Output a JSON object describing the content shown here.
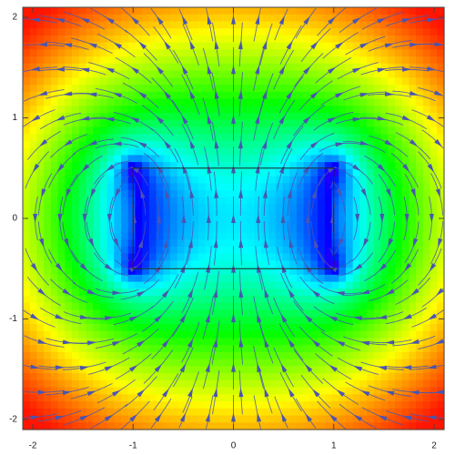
{
  "chart_data": {
    "type": "stream-density",
    "xlim": [
      -2.1,
      2.1
    ],
    "ylim": [
      -2.1,
      2.1
    ],
    "xticks": [
      -2,
      -1,
      0,
      1,
      2
    ],
    "yticks": [
      -2,
      -1,
      0,
      1,
      2
    ],
    "magnet": {
      "x": [
        -1,
        1
      ],
      "y": [
        -0.5,
        0.5
      ]
    },
    "stream_color": "#4a55b0"
  }
}
